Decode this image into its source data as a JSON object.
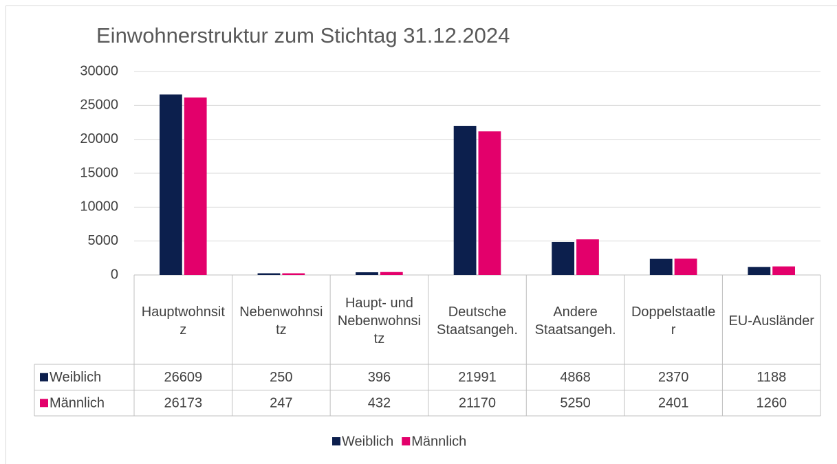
{
  "chart_data": {
    "type": "bar",
    "title": "Einwohnerstruktur zum Stichtag 31.12.2024",
    "categories": [
      "Hauptwohnsitz",
      "Nebenwohnsitz",
      "Haupt- und Nebenwohnsitz",
      "Deutsche Staatsangeh.",
      "Andere Staatsangeh.",
      "Doppelstaatler",
      "EU-Ausländer"
    ],
    "series": [
      {
        "name": "Weiblich",
        "color": "#0c1f4d",
        "values": [
          26609,
          250,
          396,
          21991,
          4868,
          2370,
          1188
        ]
      },
      {
        "name": "Männlich",
        "color": "#e3006b",
        "values": [
          26173,
          247,
          432,
          21170,
          5250,
          2401,
          1260
        ]
      }
    ],
    "ylim": [
      0,
      30000
    ],
    "yticks": [
      0,
      5000,
      10000,
      15000,
      20000,
      25000,
      30000
    ],
    "grid": true,
    "legend": "bottom",
    "data_table": true
  }
}
